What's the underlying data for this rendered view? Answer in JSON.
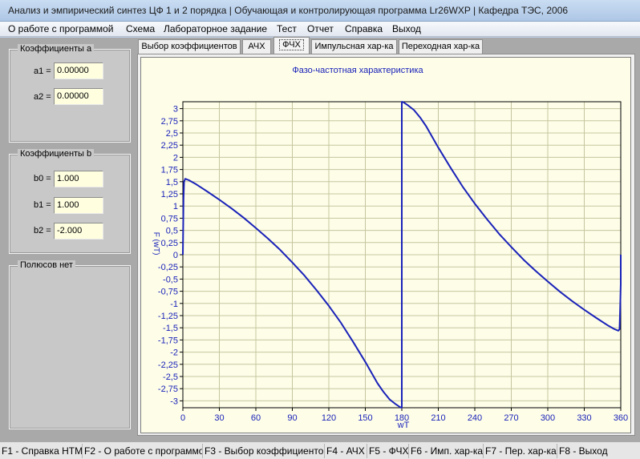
{
  "window": {
    "title": "Анализ и эмпирический синтез ЦФ 1 и 2 порядка | Обучающая и контролирующая программа Lr26WXP | Кафедра ТЭС, 2006"
  },
  "menu": [
    "О работе с программой",
    "Схема",
    "Лабораторное задание",
    "Тест",
    "Отчет",
    "Справка",
    "Выход"
  ],
  "coef_a": {
    "caption": "Коэффициенты  a",
    "a1_label": "a1 =",
    "a1_value": "0.00000",
    "a2_label": "a2 =",
    "a2_value": "0.00000"
  },
  "coef_b": {
    "caption": "Коэффициенты  b",
    "b0_label": "b0 =",
    "b0_value": "1.000",
    "b1_label": "b1 =",
    "b1_value": "1.000",
    "b2_label": "b2 =",
    "b2_value": "-2.000"
  },
  "poles": {
    "caption": "Полюсов нет"
  },
  "tabs": [
    "Выбор коэффициентов",
    "АЧХ",
    "ФЧХ",
    "Импульсная хар-ка",
    "Переходная хар-ка"
  ],
  "active_tab": 2,
  "status": [
    "F1 - Справка HTML",
    "F2 - О работе с программой",
    "F3 - Выбор коэффициентов",
    "F4 - АЧХ",
    "F5 - ФЧХ",
    "F6 - Имп. хар-ка",
    "F7 - Пер. хар-ка",
    "F8 - Выход"
  ],
  "colors": {
    "curve": "#1a22b8",
    "grid": "#c6c6a0",
    "plot_bg": "#fdfde8",
    "field_bg": "#ffffe0"
  },
  "chart_data": {
    "type": "line",
    "title": "Фазо-частотная характеристика",
    "xlabel": "wT",
    "ylabel": "F (wT)",
    "xlim": [
      0,
      360
    ],
    "ylim": [
      -3.1416,
      3.1416
    ],
    "x_ticks": [
      "0",
      "30",
      "60",
      "90",
      "120",
      "150",
      "180",
      "210",
      "240",
      "270",
      "300",
      "330",
      "360"
    ],
    "y_ticks": [
      "3",
      "2,75",
      "2,5",
      "2,25",
      "2",
      "1,75",
      "1,5",
      "1,25",
      "1",
      "0,75",
      "0,5",
      "0,25",
      "0",
      "-0,25",
      "-0,5",
      "-0,75",
      "-1",
      "-1,25",
      "-1,5",
      "-1,75",
      "-2",
      "-2,25",
      "-2,5",
      "-2,75",
      "-3"
    ],
    "grid": true,
    "series": [
      {
        "x": [
          0,
          0.5,
          1,
          2,
          5,
          10,
          20,
          30,
          40,
          50,
          60,
          70,
          80,
          90,
          100,
          110,
          120,
          130,
          140,
          150,
          160,
          165,
          170,
          175,
          178,
          179.5,
          180,
          180,
          180.5,
          182,
          185,
          190,
          195,
          200,
          210,
          220,
          230,
          240,
          250,
          260,
          270,
          280,
          290,
          300,
          310,
          320,
          330,
          340,
          350,
          355,
          358,
          359,
          359.5,
          360,
          360
        ],
        "y": [
          0,
          1.14,
          1.5,
          1.56,
          1.53,
          1.46,
          1.3,
          1.13,
          0.95,
          0.76,
          0.55,
          0.33,
          0.1,
          -0.16,
          -0.43,
          -0.73,
          -1.05,
          -1.4,
          -1.79,
          -2.2,
          -2.64,
          -2.82,
          -2.97,
          -3.07,
          -3.12,
          -3.14,
          -3.14,
          3.14,
          3.14,
          3.12,
          3.07,
          2.97,
          2.82,
          2.64,
          2.2,
          1.79,
          1.4,
          1.05,
          0.73,
          0.43,
          0.16,
          -0.1,
          -0.33,
          -0.55,
          -0.76,
          -0.95,
          -1.13,
          -1.3,
          -1.46,
          -1.53,
          -1.56,
          -1.53,
          -1.14,
          -0.6,
          0
        ]
      }
    ]
  }
}
